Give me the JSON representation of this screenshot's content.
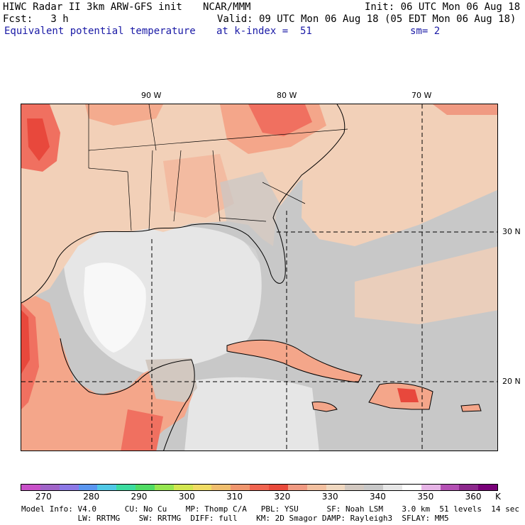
{
  "header": {
    "line1_left": "HIWC Radar II 3km ARW-GFS init",
    "line1_mid": "NCAR/MMM",
    "line1_right": "Init: 06 UTC Mon 06 Aug 18",
    "line2_left": "Fcst:   3 h",
    "line2_right": "Valid: 09 UTC Mon 06 Aug 18 (05 EDT Mon 06 Aug 18)",
    "line3_left": "Equivalent potential temperature",
    "line3_mid": "at k-index =  51",
    "line3_right": "sm= 2"
  },
  "map": {
    "lon_labels": [
      "90 W",
      "80 W",
      "70 W"
    ],
    "lat_labels": [
      "30 N",
      "20 N"
    ],
    "colors": {
      "cold_gray": "#c8c8c8",
      "light_gray": "#e6e6e6",
      "white": "#f8f8f8",
      "tan": "#f2d0b8",
      "salmon": "#f4a68a",
      "orange_red": "#f07060",
      "red": "#e8483c",
      "mid_gray": "#bebebe"
    }
  },
  "colorbar": {
    "colors": [
      "#c850c8",
      "#a064c8",
      "#8c78e6",
      "#5a96f0",
      "#50c8e6",
      "#3cdca0",
      "#50dc64",
      "#96e650",
      "#d2e650",
      "#f0dc64",
      "#f0be6e",
      "#f0966e",
      "#f06450",
      "#e84a3c",
      "#f09a82",
      "#f2c0a0",
      "#f0d8c0",
      "#d2c8c0",
      "#c8c8c8",
      "#e6e6e6",
      "#ffffff",
      "#e6b4e6",
      "#b450b4",
      "#8c288c",
      "#780078"
    ],
    "labels": [
      "270",
      "280",
      "290",
      "300",
      "310",
      "320",
      "330",
      "340",
      "350",
      "360"
    ],
    "unit": "K"
  },
  "footer": {
    "line1": "Model Info: V4.0      CU: No Cu    MP: Thomp C/A   PBL: YSU      SF: Noah LSM    3.0 km  51 levels  14 sec",
    "line2": "            LW: RRTMG    SW: RRTMG  DIFF: full    KM: 2D Smagor DAMP: Rayleigh3  SFLAY: MM5"
  }
}
